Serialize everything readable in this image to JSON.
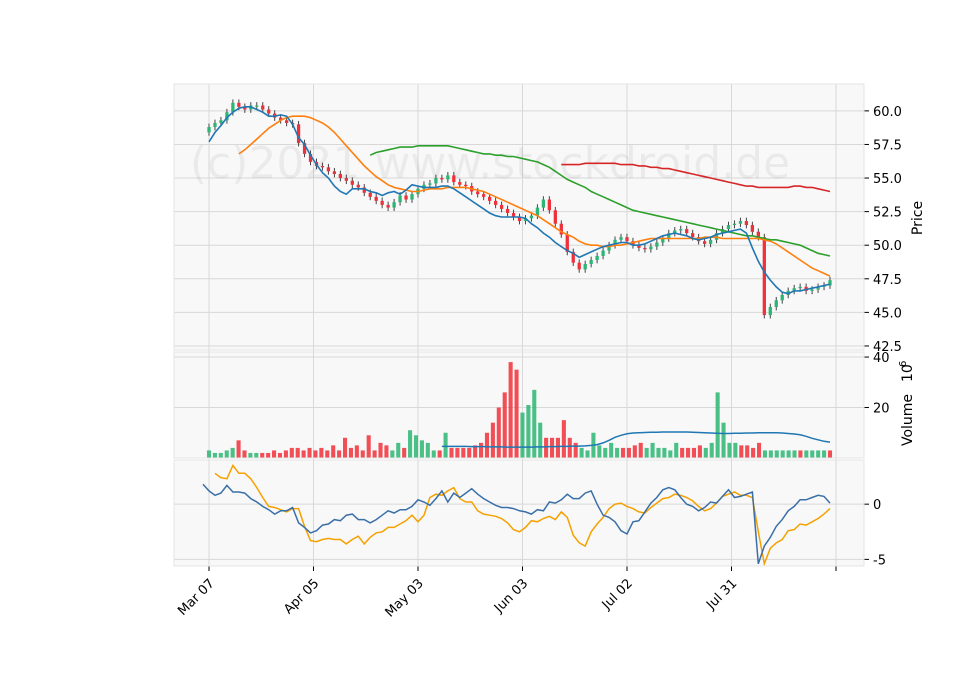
{
  "chart_data": {
    "type": "candlestick",
    "watermark": "(c)2021 www.stockdroid.de",
    "colors": {
      "up": "#2bb673",
      "down": "#f0303a",
      "ma_short": "#1f77b4",
      "ma_mid": "#ff7f0e",
      "ma_long": "#2ca02c",
      "ma_longest": "#d62728",
      "volume_ma": "#1f77b4",
      "indicator_1": "#3a6fa8",
      "indicator_2": "#f5a100",
      "panel_bg": "#f8f8f8",
      "grid": "#d8d8d8"
    },
    "grid": true,
    "x_tick_labels": [
      "Mar 07",
      "Apr 05",
      "May 03",
      "Jun 03",
      "Jul 02",
      "Jul 31"
    ],
    "price_panel": {
      "ylabel": "Price",
      "ylim": [
        42.2,
        62.0
      ],
      "yticks": [
        "42.5",
        "45.0",
        "47.5",
        "50.0",
        "52.5",
        "55.0",
        "57.5",
        "60.0"
      ],
      "close": [
        58.8,
        59.1,
        59.3,
        59.9,
        60.6,
        60.3,
        60.1,
        60.4,
        60.4,
        60.1,
        59.8,
        59.5,
        59.3,
        59.1,
        59.0,
        57.6,
        56.8,
        56.2,
        55.9,
        55.8,
        55.5,
        55.3,
        55.0,
        54.8,
        54.5,
        54.3,
        53.9,
        53.6,
        53.3,
        53.0,
        52.8,
        53.2,
        53.7,
        53.4,
        53.8,
        54.2,
        54.5,
        54.6,
        55.0,
        54.9,
        55.2,
        54.7,
        54.5,
        54.4,
        54.0,
        53.8,
        53.6,
        53.3,
        53.0,
        52.7,
        52.4,
        52.1,
        51.8,
        52.0,
        52.2,
        52.8,
        53.4,
        52.6,
        51.6,
        50.8,
        49.5,
        48.7,
        48.2,
        48.6,
        48.9,
        49.2,
        49.6,
        50.0,
        50.4,
        50.6,
        50.3,
        50.0,
        49.8,
        49.7,
        49.9,
        50.2,
        50.5,
        50.9,
        51.1,
        51.2,
        50.9,
        50.6,
        50.3,
        50.1,
        50.4,
        50.9,
        51.2,
        51.5,
        51.6,
        51.8,
        51.5,
        51.0,
        50.6,
        44.8,
        45.4,
        45.9,
        46.3,
        46.6,
        46.8,
        46.9,
        46.6,
        46.7,
        46.9,
        47.0,
        47.4
      ],
      "ma_short": [
        57.7,
        58.4,
        58.9,
        59.5,
        59.9,
        60.2,
        60.3,
        60.3,
        60.1,
        59.9,
        59.6,
        59.6,
        59.7,
        59.6,
        59.0,
        58.0,
        57.5,
        56.7,
        56.0,
        55.4,
        55.0,
        54.4,
        54.0,
        53.8,
        54.2,
        54.2,
        54.2,
        54.0,
        53.9,
        53.7,
        53.9,
        54.0,
        53.8,
        54.1,
        54.5,
        54.4,
        54.3,
        54.3,
        54.3,
        54.4,
        54.4,
        54.2,
        53.9,
        53.6,
        53.3,
        53.0,
        52.7,
        52.4,
        52.2,
        52.1,
        52.1,
        52.1,
        52.1,
        52.0,
        51.6,
        51.3,
        50.9,
        50.6,
        50.2,
        49.9,
        49.6,
        49.4,
        49.1,
        49.3,
        49.5,
        49.7,
        49.9,
        50.0,
        50.1,
        50.2,
        50.2,
        50.0,
        50.0,
        50.1,
        50.3,
        50.5,
        50.7,
        50.8,
        50.9,
        50.8,
        50.7,
        50.5,
        50.4,
        50.5,
        50.6,
        50.8,
        50.9,
        51.0,
        51.1,
        51.2,
        50.9,
        49.8,
        48.8,
        48.0,
        47.4,
        46.9,
        46.5,
        46.4,
        46.6,
        46.6,
        46.7,
        46.8,
        46.9,
        47.0,
        47.1
      ],
      "ma_mid": [
        56.8,
        57.1,
        57.5,
        57.9,
        58.3,
        58.7,
        59.0,
        59.3,
        59.5,
        59.6,
        59.6,
        59.6,
        59.5,
        59.3,
        59.1,
        58.8,
        58.4,
        57.9,
        57.4,
        56.9,
        56.4,
        55.9,
        55.5,
        55.1,
        54.8,
        54.5,
        54.3,
        54.2,
        54.1,
        54.0,
        54.0,
        54.1,
        54.2,
        54.2,
        54.2,
        54.3,
        54.3,
        54.3,
        54.3,
        54.2,
        54.1,
        54.0,
        53.8,
        53.6,
        53.4,
        53.2,
        53.0,
        52.8,
        52.6,
        52.4,
        52.2,
        51.9,
        51.6,
        51.3,
        51.0,
        50.8,
        50.6,
        50.3,
        50.1,
        50.0,
        50.0,
        49.9,
        49.9,
        50.0,
        50.0,
        50.1,
        50.2,
        50.3,
        50.4,
        50.5,
        50.5,
        50.5,
        50.5,
        50.5,
        50.5,
        50.5,
        50.5,
        50.5,
        50.6,
        50.6,
        50.6,
        50.5,
        50.5,
        50.5,
        50.5,
        50.5,
        50.5,
        50.5,
        50.4,
        50.3,
        50.1,
        49.8,
        49.5,
        49.2,
        48.9,
        48.6,
        48.3,
        48.1,
        47.9,
        47.7
      ],
      "ma_long": [
        56.7,
        56.9,
        57.0,
        57.1,
        57.2,
        57.3,
        57.3,
        57.3,
        57.4,
        57.4,
        57.4,
        57.4,
        57.4,
        57.4,
        57.3,
        57.2,
        57.1,
        57.0,
        56.9,
        56.8,
        56.8,
        56.7,
        56.7,
        56.6,
        56.6,
        56.5,
        56.4,
        56.3,
        56.2,
        56.0,
        55.8,
        55.5,
        55.2,
        54.9,
        54.7,
        54.5,
        54.3,
        54.0,
        53.8,
        53.6,
        53.4,
        53.2,
        53.0,
        52.8,
        52.6,
        52.5,
        52.4,
        52.3,
        52.2,
        52.1,
        52.0,
        51.9,
        51.8,
        51.7,
        51.6,
        51.5,
        51.4,
        51.3,
        51.2,
        51.1,
        51.0,
        50.9,
        50.8,
        50.7,
        50.7,
        50.6,
        50.5,
        50.4,
        50.4,
        50.3,
        50.2,
        50.1,
        50.0,
        49.8,
        49.6,
        49.4,
        49.3,
        49.2
      ],
      "ma_longest": [
        56.0,
        56.0,
        56.0,
        56.0,
        56.1,
        56.1,
        56.1,
        56.1,
        56.1,
        56.1,
        56.0,
        56.0,
        56.0,
        55.9,
        55.9,
        55.8,
        55.8,
        55.7,
        55.7,
        55.6,
        55.5,
        55.4,
        55.3,
        55.2,
        55.1,
        55.0,
        54.9,
        54.8,
        54.7,
        54.6,
        54.5,
        54.4,
        54.4,
        54.3,
        54.3,
        54.3,
        54.3,
        54.3,
        54.3,
        54.4,
        54.4,
        54.3,
        54.3,
        54.2,
        54.1,
        54.0
      ]
    },
    "volume_panel": {
      "ylabel": "Volume",
      "scale_label": "10",
      "scale_exponent": "6",
      "ylim": [
        0,
        42
      ],
      "yticks": [
        "20",
        "40"
      ],
      "values": [
        3,
        2,
        2,
        3,
        4,
        7,
        3,
        2,
        2,
        2,
        2,
        3,
        2,
        3,
        4,
        4,
        3,
        4,
        3,
        4,
        3,
        5,
        3,
        8,
        4,
        5,
        3,
        9,
        3,
        6,
        5,
        3,
        6,
        4,
        11,
        9,
        7,
        6,
        3,
        3,
        10,
        4,
        4,
        4,
        4,
        5,
        6,
        10,
        14,
        20,
        26,
        38,
        35,
        18,
        21,
        27,
        14,
        8,
        8,
        8,
        15,
        8,
        6,
        4,
        3,
        10,
        5,
        4,
        6,
        4,
        4,
        4,
        5,
        6,
        4,
        6,
        4,
        4,
        3,
        6,
        4,
        4,
        4,
        5,
        4,
        6,
        26,
        14,
        6,
        6,
        5,
        5,
        4,
        6,
        3,
        3,
        3,
        3,
        3,
        3,
        3,
        3,
        3,
        3,
        3,
        3
      ],
      "volume_ma": [
        4.6,
        4.6,
        4.6,
        4.6,
        4.6,
        4.5,
        4.5,
        4.5,
        4.4,
        4.4,
        4.4,
        4.3,
        4.3,
        4.3,
        4.3,
        4.3,
        4.4,
        4.4,
        4.5,
        4.5,
        4.6,
        4.6,
        4.7,
        4.7,
        4.8,
        5.0,
        5.3,
        6.0,
        7.0,
        8.2,
        9.0,
        9.6,
        9.9,
        10.0,
        10.1,
        10.2,
        10.2,
        10.3,
        10.3,
        10.3,
        10.3,
        10.3,
        10.2,
        10.1,
        10.0,
        9.9,
        9.8,
        9.7,
        9.7,
        9.8,
        9.8,
        9.9,
        9.9,
        10.0,
        10.0,
        10.0,
        10.0,
        9.9,
        9.7,
        9.5,
        9.2,
        8.6,
        7.8,
        7.2,
        6.6,
        6.3
      ]
    },
    "indicator_panel": {
      "ylim": [
        -5.6,
        4.0
      ],
      "yticks": [
        "-5",
        "0"
      ],
      "line_1": [
        1.8,
        1.2,
        0.8,
        1.0,
        1.7,
        1.1,
        1.1,
        1.0,
        0.5,
        0.2,
        -0.2,
        -0.5,
        -0.9,
        -0.6,
        -0.6,
        -0.3,
        -1.7,
        -2.1,
        -2.6,
        -2.4,
        -1.9,
        -1.8,
        -1.4,
        -1.5,
        -1.0,
        -0.9,
        -1.4,
        -1.4,
        -1.7,
        -1.4,
        -1.0,
        -0.6,
        -0.8,
        -0.5,
        -0.5,
        -0.2,
        0.4,
        0.2,
        -0.1,
        0.5,
        1.2,
        0.2,
        1.0,
        0.6,
        1.0,
        1.4,
        0.9,
        0.5,
        0.2,
        -0.1,
        -0.3,
        -0.3,
        -0.4,
        -0.6,
        -0.7,
        -0.9,
        -0.5,
        -0.6,
        0.2,
        0.1,
        0.4,
        0.9,
        0.5,
        0.5,
        1.0,
        1.2,
        0.0,
        -1.0,
        -1.2,
        -1.6,
        -2.4,
        -2.7,
        -1.6,
        -1.5,
        -0.7,
        0.1,
        0.6,
        1.3,
        1.5,
        1.3,
        0.6,
        0.0,
        -0.2,
        -0.6,
        -0.3,
        0.2,
        0.1,
        0.7,
        1.3,
        0.6,
        0.7,
        0.9,
        1.1,
        -5.4,
        -3.8,
        -3.0,
        -2.0,
        -1.4,
        -0.6,
        -0.2,
        0.4,
        0.4,
        0.6,
        0.8,
        0.7,
        0.1
      ],
      "line_2": [
        2.8,
        2.4,
        2.3,
        3.5,
        2.8,
        2.8,
        2.3,
        1.5,
        0.6,
        -0.2,
        -0.3,
        -0.5,
        -0.7,
        -0.4,
        -0.4,
        -2.0,
        -3.3,
        -3.4,
        -3.2,
        -3.1,
        -3.2,
        -3.2,
        -3.6,
        -3.2,
        -2.9,
        -3.6,
        -3.0,
        -2.6,
        -2.5,
        -2.1,
        -2.1,
        -1.8,
        -1.5,
        -1.0,
        -1.6,
        -1.0,
        0.6,
        0.9,
        0.8,
        1.2,
        1.5,
        0.5,
        0.2,
        0.2,
        -0.6,
        -0.9,
        -1.0,
        -1.1,
        -1.3,
        -1.7,
        -2.3,
        -2.5,
        -2.1,
        -1.5,
        -1.6,
        -1.3,
        -1.1,
        -1.4,
        -0.7,
        -1.2,
        -2.8,
        -3.5,
        -3.8,
        -2.5,
        -1.8,
        -1.2,
        -0.4,
        0.0,
        0.1,
        -0.2,
        -0.4,
        -0.7,
        -0.8,
        -0.3,
        0.1,
        0.5,
        0.6,
        0.9,
        0.8,
        0.6,
        0.3,
        -0.2,
        -0.6,
        -0.4,
        0.1,
        0.7,
        0.9,
        1.1,
        0.8,
        0.8,
        0.6,
        -2.5,
        -5.4,
        -4.0,
        -3.5,
        -3.2,
        -2.4,
        -2.3,
        -1.8,
        -1.9,
        -1.6,
        -1.3,
        -0.9,
        -0.4
      ]
    }
  }
}
